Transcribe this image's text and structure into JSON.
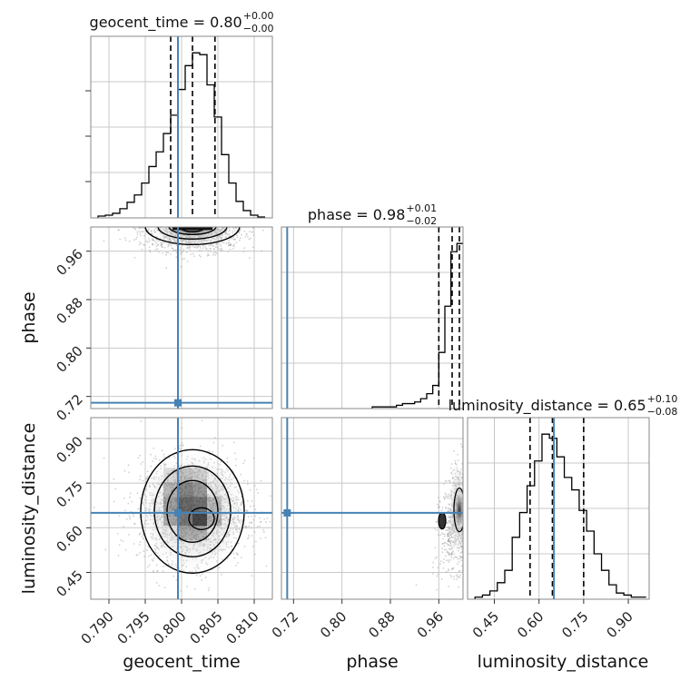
{
  "colors": {
    "truth": "#4682b4",
    "hist": "#000000",
    "grid": "#c8c8c8",
    "frame": "#888888",
    "scatter": "#9a9a9a"
  },
  "chart_data": {
    "type": "corner",
    "parameters": [
      "geocent_time",
      "phase",
      "luminosity_distance"
    ],
    "truths": {
      "geocent_time": 0.7995,
      "phase": 0.7095,
      "luminosity_distance": 0.65
    },
    "titles": [
      {
        "param": "geocent_time",
        "main": "geocent_time = 0.80",
        "sup": "+0.00",
        "sub": "−0.00"
      },
      {
        "param": "phase",
        "main": "phase = 0.98",
        "sup": "+0.01",
        "sub": "−0.02"
      },
      {
        "param": "luminosity_distance",
        "main": "luminosity_distance = 0.65",
        "sup": "+0.10",
        "sub": "−0.08"
      }
    ],
    "ranges": {
      "geocent_time": [
        0.7875,
        0.8125
      ],
      "phase": [
        0.7,
        1.0
      ],
      "luminosity_distance": [
        0.36,
        0.97
      ]
    },
    "ticks": {
      "geocent_time": [
        "0.790",
        "0.795",
        "0.800",
        "0.805",
        "0.810"
      ],
      "phase": [
        "0.72",
        "0.80",
        "0.88",
        "0.96"
      ],
      "luminosity_distance": [
        "0.45",
        "0.60",
        "0.75",
        "0.90"
      ]
    },
    "axis_labels": [
      "geocent_time",
      "phase",
      "luminosity_distance"
    ],
    "diagonal": [
      {
        "param": "geocent_time",
        "bin_edges": [
          0.7885,
          0.7895,
          0.7905,
          0.7915,
          0.7925,
          0.7935,
          0.7945,
          0.7955,
          0.7965,
          0.7975,
          0.7985,
          0.7995,
          0.8005,
          0.8015,
          0.8025,
          0.8035,
          0.8045,
          0.8055,
          0.8065,
          0.8075,
          0.8085,
          0.8095,
          0.8105,
          0.8115
        ],
        "counts": [
          2,
          3,
          5,
          10,
          17,
          25,
          38,
          56,
          72,
          92,
          112,
          140,
          166,
          180,
          178,
          145,
          110,
          69,
          38,
          18,
          8,
          3,
          1
        ],
        "quantiles": [
          0.7985,
          0.8015,
          0.8046
        ]
      },
      {
        "param": "phase",
        "bin_edges": [
          0.85,
          0.86,
          0.87,
          0.88,
          0.89,
          0.9,
          0.91,
          0.92,
          0.93,
          0.94,
          0.95,
          0.96,
          0.97,
          0.98,
          0.99,
          1.0
        ],
        "counts": [
          1,
          1,
          1,
          1,
          2,
          3,
          3,
          4,
          6,
          9,
          14,
          34,
          62,
          95,
          100
        ],
        "quantiles": [
          0.96,
          0.982,
          0.994
        ]
      },
      {
        "param": "luminosity_distance",
        "bin_edges": [
          0.385,
          0.41,
          0.435,
          0.46,
          0.485,
          0.51,
          0.535,
          0.56,
          0.585,
          0.61,
          0.635,
          0.66,
          0.685,
          0.71,
          0.735,
          0.76,
          0.785,
          0.81,
          0.835,
          0.86,
          0.885,
          0.91,
          0.935,
          0.96
        ],
        "counts": [
          1,
          2,
          4,
          8,
          14,
          30,
          42,
          55,
          67,
          80,
          78,
          69,
          59,
          53,
          43,
          33,
          22,
          14,
          7,
          3,
          2,
          1,
          1
        ],
        "quantiles": [
          0.57,
          0.645,
          0.75
        ]
      }
    ],
    "contour_note": "2D panels show posterior sample density with 4 contour levels"
  }
}
